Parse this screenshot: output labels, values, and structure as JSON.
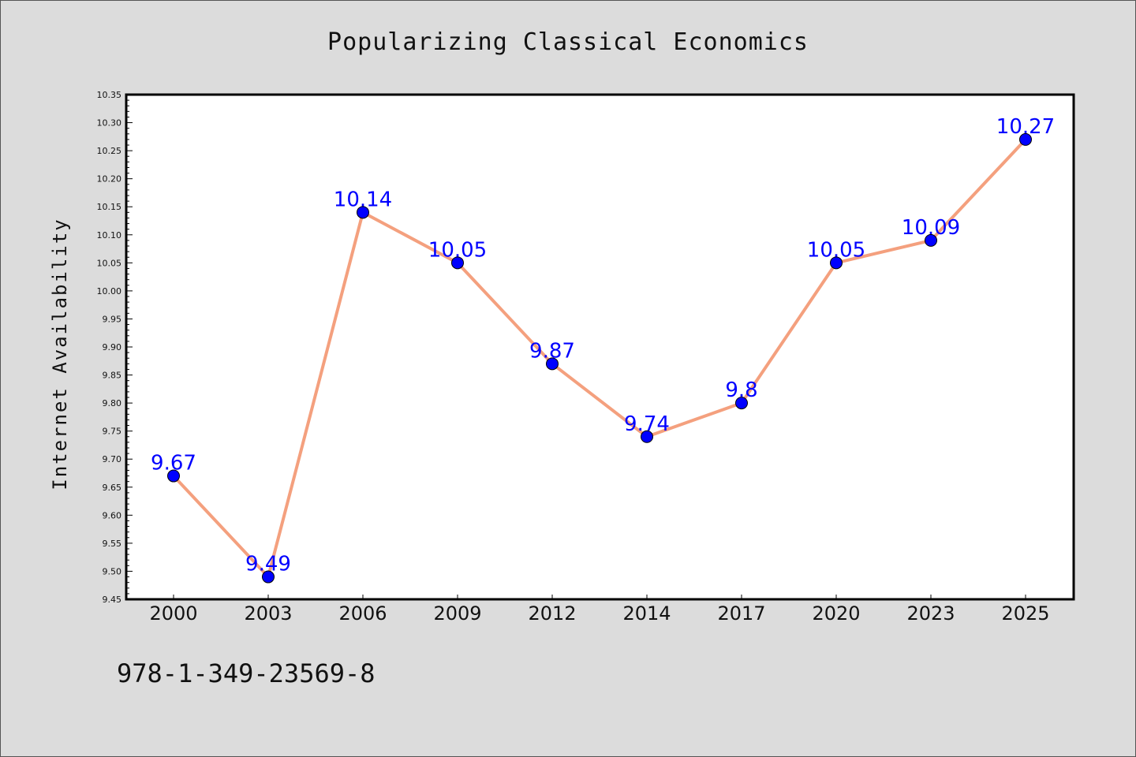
{
  "chart_data": {
    "type": "line",
    "title": "Popularizing Classical Economics",
    "xlabel": "",
    "ylabel": "Internet Availability",
    "categories": [
      "2000",
      "2003",
      "2006",
      "2009",
      "2012",
      "2014",
      "2017",
      "2020",
      "2023",
      "2025"
    ],
    "series": [
      {
        "values": [
          9.67,
          9.49,
          10.14,
          10.05,
          9.87,
          9.74,
          9.8,
          10.05,
          10.09,
          10.27
        ],
        "labels": [
          "9.67",
          "9.49",
          "10.14",
          "10.05",
          "9.87",
          "9.74",
          "9.8",
          "10.05",
          "10.09",
          "10.27"
        ]
      }
    ],
    "ylim": [
      9.45,
      10.35
    ],
    "yticks": [
      "9.45",
      "9.50",
      "9.55",
      "9.60",
      "9.65",
      "9.70",
      "9.75",
      "9.80",
      "9.85",
      "9.90",
      "9.95",
      "10.00",
      "10.05",
      "10.10",
      "10.15",
      "10.20",
      "10.25",
      "10.30",
      "10.35"
    ],
    "grid": false,
    "line_color": "#f4a07e",
    "marker_color": "#0000ff",
    "label_color": "#0000ff",
    "background": "#dcdcdc",
    "plot_background": "#ffffff"
  },
  "footer": {
    "isbn": "978-1-349-23569-8"
  }
}
